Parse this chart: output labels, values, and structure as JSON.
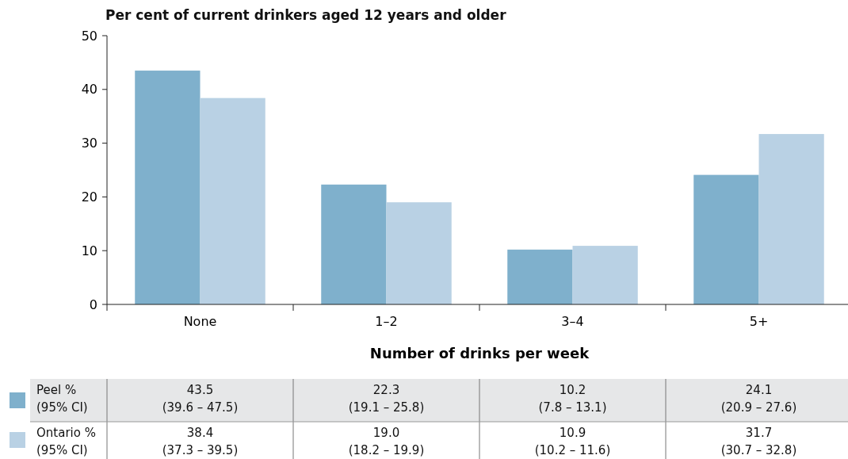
{
  "chart_data": {
    "type": "bar",
    "title": "Per cent of current drinkers aged 12 years and older",
    "xlabel": "Number of drinks per week",
    "categories": [
      "None",
      "1–2",
      "3–4",
      "5+"
    ],
    "series": [
      {
        "name": "Peel % (95% CI)",
        "color": "#7fb0cc",
        "values": [
          43.5,
          22.3,
          10.2,
          24.1
        ],
        "value_labels": [
          "43.5\n(39.6 – 47.5)",
          "22.3\n(19.1 – 25.8)",
          "10.2\n(7.8 – 13.1)",
          "24.1\n(20.9 – 27.6)"
        ]
      },
      {
        "name": "Ontario % (95% CI)",
        "color": "#b9d1e4",
        "values": [
          38.4,
          19.0,
          10.9,
          31.7
        ],
        "value_labels": [
          "38.4\n(37.3 – 39.5)",
          "19.0\n(18.2 – 19.9)",
          "10.9\n(10.2 – 11.6)",
          "31.7\n(30.7 – 32.8)"
        ]
      }
    ],
    "ylim": [
      0,
      50
    ],
    "yticks": [
      0,
      10,
      20,
      30,
      40,
      50
    ],
    "legend": "bottom"
  }
}
